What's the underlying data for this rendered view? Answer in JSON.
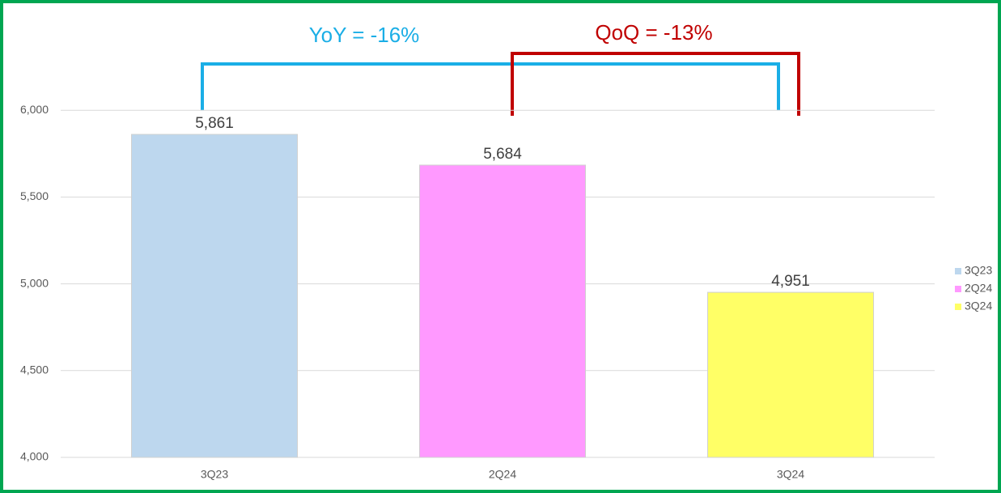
{
  "chart_data": {
    "type": "bar",
    "categories": [
      "3Q23",
      "2Q24",
      "3Q24"
    ],
    "values": [
      5861,
      5684,
      4951
    ],
    "value_labels": [
      "5,861",
      "5,684",
      "4,951"
    ],
    "colors": [
      "#bdd7ee",
      "#ff99ff",
      "#ffff66"
    ],
    "ylim": [
      4000,
      6500
    ],
    "yticks": [
      {
        "value": 4000,
        "label": "4,000"
      },
      {
        "value": 4500,
        "label": "4,500"
      },
      {
        "value": 5000,
        "label": "5,000"
      },
      {
        "value": 5500,
        "label": "5,500"
      },
      {
        "value": 6000,
        "label": "6,000"
      }
    ],
    "grid": true,
    "legend": "right",
    "annotations": [
      {
        "text": "YoY = -16%",
        "color": "#1aaee6"
      },
      {
        "text": "QoQ = -13%",
        "color": "#c00000"
      }
    ]
  }
}
